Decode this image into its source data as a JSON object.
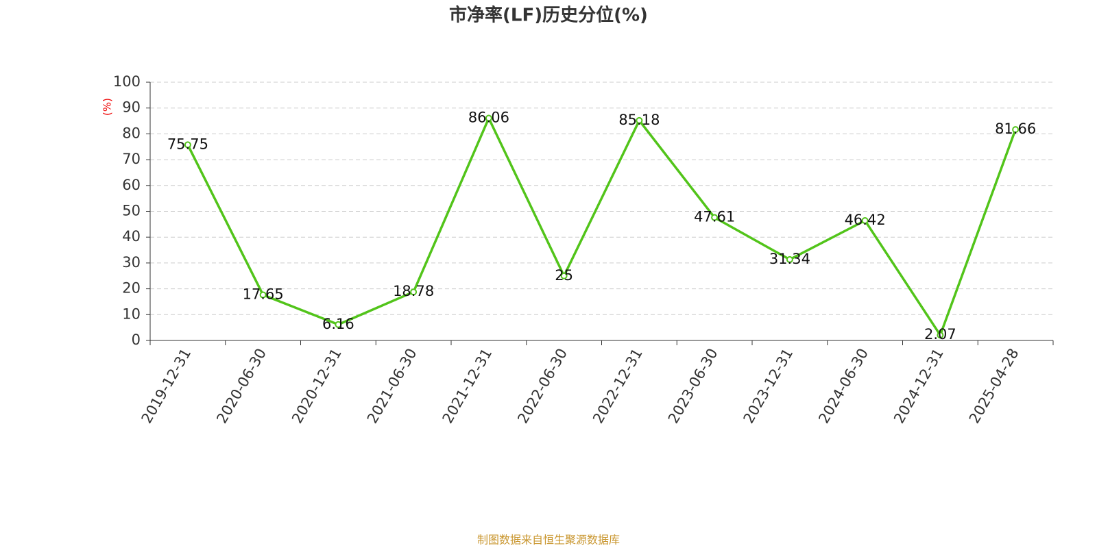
{
  "chart_data": {
    "type": "line",
    "title": "市净率(LF)历史分位(%)",
    "y_label": "(%)",
    "source": "制图数据来自恒生聚源数据库",
    "categories": [
      "2019-12-31",
      "2020-06-30",
      "2020-12-31",
      "2021-06-30",
      "2021-12-31",
      "2022-06-30",
      "2022-12-31",
      "2023-06-30",
      "2023-12-31",
      "2024-06-30",
      "2024-12-31",
      "2025-04-28"
    ],
    "values": [
      75.75,
      17.65,
      6.16,
      18.78,
      86.06,
      25,
      85.18,
      47.61,
      31.34,
      46.42,
      2.07,
      81.66
    ],
    "color": "#52c41a",
    "ylim": [
      0,
      100
    ],
    "yticks": [
      0,
      10,
      20,
      30,
      40,
      50,
      60,
      70,
      80,
      90,
      100
    ],
    "grid": true
  }
}
